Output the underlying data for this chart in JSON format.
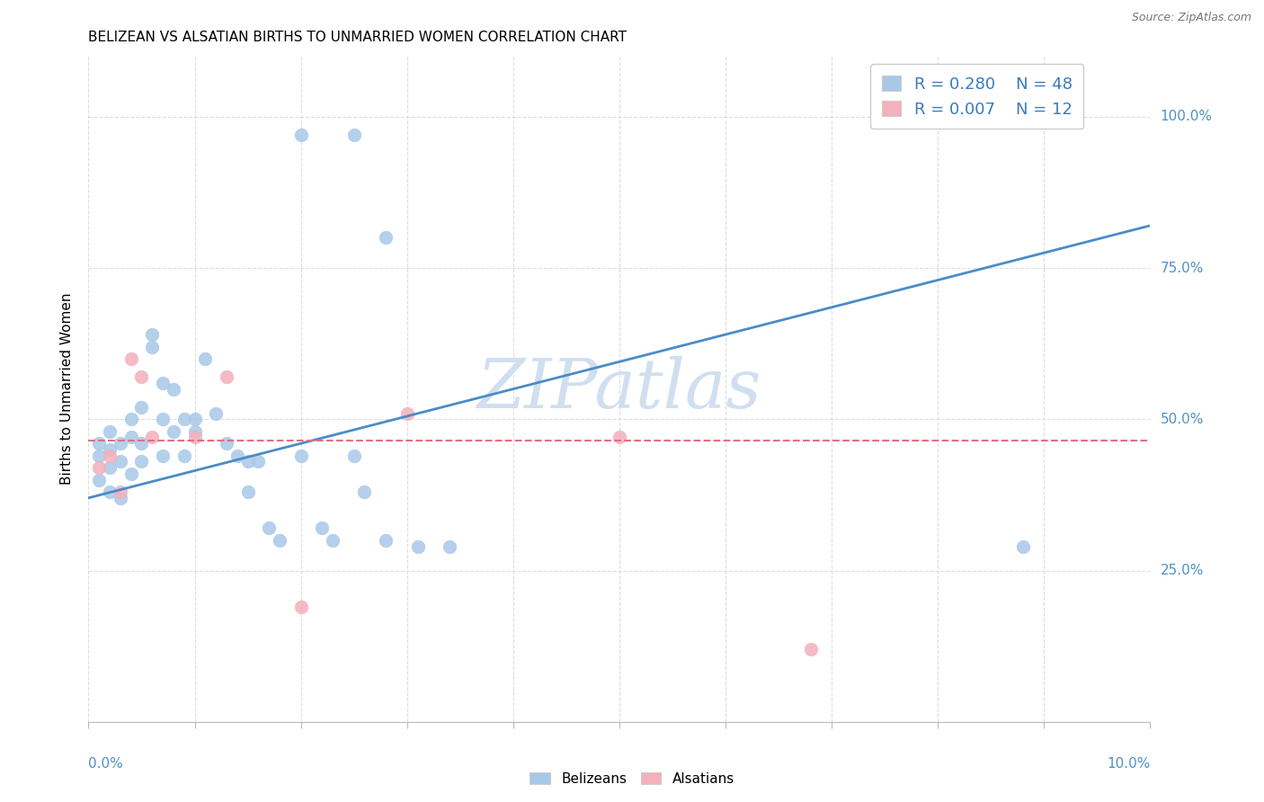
{
  "title": "BELIZEAN VS ALSATIAN BIRTHS TO UNMARRIED WOMEN CORRELATION CHART",
  "source": "Source: ZipAtlas.com",
  "ylabel": "Births to Unmarried Women",
  "ytick_positions": [
    0.0,
    0.25,
    0.5,
    0.75,
    1.0
  ],
  "ytick_labels_right": [
    "",
    "25.0%",
    "50.0%",
    "75.0%",
    "100.0%"
  ],
  "xmin": 0.0,
  "xmax": 0.1,
  "ymin": 0.0,
  "ymax": 1.1,
  "blue_R": 0.28,
  "blue_N": 48,
  "pink_R": 0.007,
  "pink_N": 12,
  "blue_scatter_color": "#a8c8e8",
  "pink_scatter_color": "#f4b0bb",
  "blue_line_color": "#4a8cc7",
  "pink_line_color": "#e07080",
  "axis_label_color": "#5090c8",
  "legend_text_color": "#3a7abf",
  "watermark_color": "#d0dff0",
  "grid_color": "#dddddd",
  "blue_scatter_x": [
    0.001,
    0.001,
    0.001,
    0.002,
    0.002,
    0.002,
    0.002,
    0.003,
    0.003,
    0.003,
    0.004,
    0.004,
    0.004,
    0.005,
    0.005,
    0.005,
    0.006,
    0.006,
    0.007,
    0.007,
    0.007,
    0.008,
    0.008,
    0.009,
    0.009,
    0.01,
    0.01,
    0.011,
    0.012,
    0.013,
    0.014,
    0.015,
    0.015,
    0.016,
    0.017,
    0.018,
    0.02,
    0.022,
    0.023,
    0.025,
    0.026,
    0.028,
    0.031,
    0.034,
    0.02,
    0.025,
    0.028,
    0.088
  ],
  "blue_scatter_y": [
    0.44,
    0.46,
    0.4,
    0.45,
    0.42,
    0.48,
    0.38,
    0.46,
    0.43,
    0.37,
    0.5,
    0.47,
    0.41,
    0.52,
    0.46,
    0.43,
    0.62,
    0.64,
    0.56,
    0.5,
    0.44,
    0.55,
    0.48,
    0.5,
    0.44,
    0.5,
    0.48,
    0.6,
    0.51,
    0.46,
    0.44,
    0.43,
    0.38,
    0.43,
    0.32,
    0.3,
    0.44,
    0.32,
    0.3,
    0.44,
    0.38,
    0.3,
    0.29,
    0.29,
    0.97,
    0.97,
    0.8,
    0.29
  ],
  "pink_scatter_x": [
    0.001,
    0.002,
    0.003,
    0.004,
    0.005,
    0.006,
    0.01,
    0.013,
    0.02,
    0.03,
    0.068,
    0.05
  ],
  "pink_scatter_y": [
    0.42,
    0.44,
    0.38,
    0.6,
    0.57,
    0.47,
    0.47,
    0.57,
    0.19,
    0.51,
    0.12,
    0.47
  ],
  "blue_line_x": [
    0.0,
    0.1
  ],
  "blue_line_y": [
    0.37,
    0.82
  ],
  "pink_line_y": 0.465,
  "title_fontsize": 11,
  "source_fontsize": 9,
  "axis_fontsize": 11,
  "legend_fontsize": 13,
  "watermark_fontsize": 55
}
